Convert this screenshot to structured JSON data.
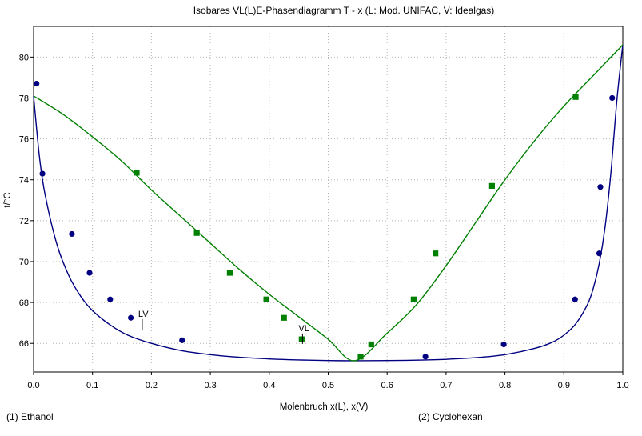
{
  "chart_data": {
    "type": "scatter",
    "title": "Isobares VL(L)E-Phasendiagramm T - x  (L: Mod. UNIFAC, V: Idealgas)",
    "xlabel": "Molenbruch x(L), x(V)",
    "ylabel": "t/°C",
    "xlim": [
      0.0,
      1.0
    ],
    "ylim": [
      64.6,
      81.5
    ],
    "xticks": [
      0.0,
      0.1,
      0.2,
      0.3,
      0.4,
      0.5,
      0.6,
      0.7,
      0.8,
      0.9,
      1.0
    ],
    "xtick_labels": [
      "0.0",
      "0.1",
      "0.2",
      "0.3",
      "0.4",
      "0.5",
      "0.6",
      "0.7",
      "0.8",
      "0.9",
      "1.0"
    ],
    "yticks": [
      66,
      68,
      70,
      72,
      74,
      76,
      78,
      80
    ],
    "ytick_labels": [
      "66",
      "68",
      "70",
      "72",
      "74",
      "76",
      "78",
      "80"
    ],
    "grid": true,
    "components": {
      "left": "(1) Ethanol",
      "right": "(2) Cyclohexan"
    },
    "annotations": [
      {
        "text": "LV",
        "x": 0.198,
        "y": 67.3
      },
      {
        "text": "VL",
        "x": 0.47,
        "y": 66.6
      }
    ],
    "series": [
      {
        "role": "liquid-model-curve",
        "style": "line",
        "color": "#000080",
        "x": [
          0.0,
          0.01,
          0.02,
          0.04,
          0.06,
          0.08,
          0.1,
          0.13,
          0.16,
          0.2,
          0.25,
          0.3,
          0.35,
          0.4,
          0.45,
          0.5,
          0.545,
          0.6,
          0.65,
          0.7,
          0.75,
          0.8,
          0.85,
          0.88,
          0.9,
          0.92,
          0.94,
          0.95,
          0.96,
          0.97,
          0.98,
          0.99,
          1.0
        ],
        "y": [
          78.1,
          75.1,
          73.2,
          70.8,
          69.3,
          68.3,
          67.6,
          66.9,
          66.4,
          66.0,
          65.65,
          65.45,
          65.32,
          65.24,
          65.19,
          65.16,
          65.15,
          65.16,
          65.18,
          65.22,
          65.3,
          65.45,
          65.75,
          66.05,
          66.4,
          66.95,
          67.9,
          68.7,
          69.9,
          71.7,
          74.4,
          77.9,
          80.6
        ]
      },
      {
        "role": "vapor-model-curve",
        "style": "line",
        "color": "#008000",
        "x": [
          0.0,
          0.05,
          0.1,
          0.15,
          0.2,
          0.25,
          0.3,
          0.35,
          0.4,
          0.45,
          0.5,
          0.545,
          0.6,
          0.65,
          0.7,
          0.75,
          0.8,
          0.85,
          0.9,
          0.95,
          1.0
        ],
        "y": [
          78.1,
          77.2,
          76.1,
          74.9,
          73.5,
          72.2,
          70.9,
          69.6,
          68.4,
          67.3,
          66.2,
          65.15,
          66.5,
          67.9,
          69.8,
          71.9,
          74.0,
          75.9,
          77.6,
          79.1,
          80.6
        ]
      },
      {
        "role": "liquid-measured",
        "style": "circle",
        "color": "#000080",
        "x": [
          0.005,
          0.015,
          0.065,
          0.095,
          0.13,
          0.165,
          0.252,
          0.665,
          0.798,
          0.919,
          0.96,
          0.962,
          0.982
        ],
        "y": [
          78.7,
          74.3,
          71.35,
          69.45,
          68.15,
          67.25,
          66.15,
          65.35,
          65.95,
          68.15,
          70.4,
          73.65,
          78.0
        ]
      },
      {
        "role": "vapor-measured",
        "style": "square",
        "color": "#008000",
        "x": [
          0.175,
          0.277,
          0.333,
          0.395,
          0.425,
          0.455,
          0.555,
          0.573,
          0.645,
          0.682,
          0.778,
          0.92
        ],
        "y": [
          74.35,
          71.4,
          69.45,
          68.15,
          67.25,
          66.2,
          65.35,
          65.95,
          68.15,
          70.4,
          73.7,
          78.05
        ]
      }
    ]
  }
}
